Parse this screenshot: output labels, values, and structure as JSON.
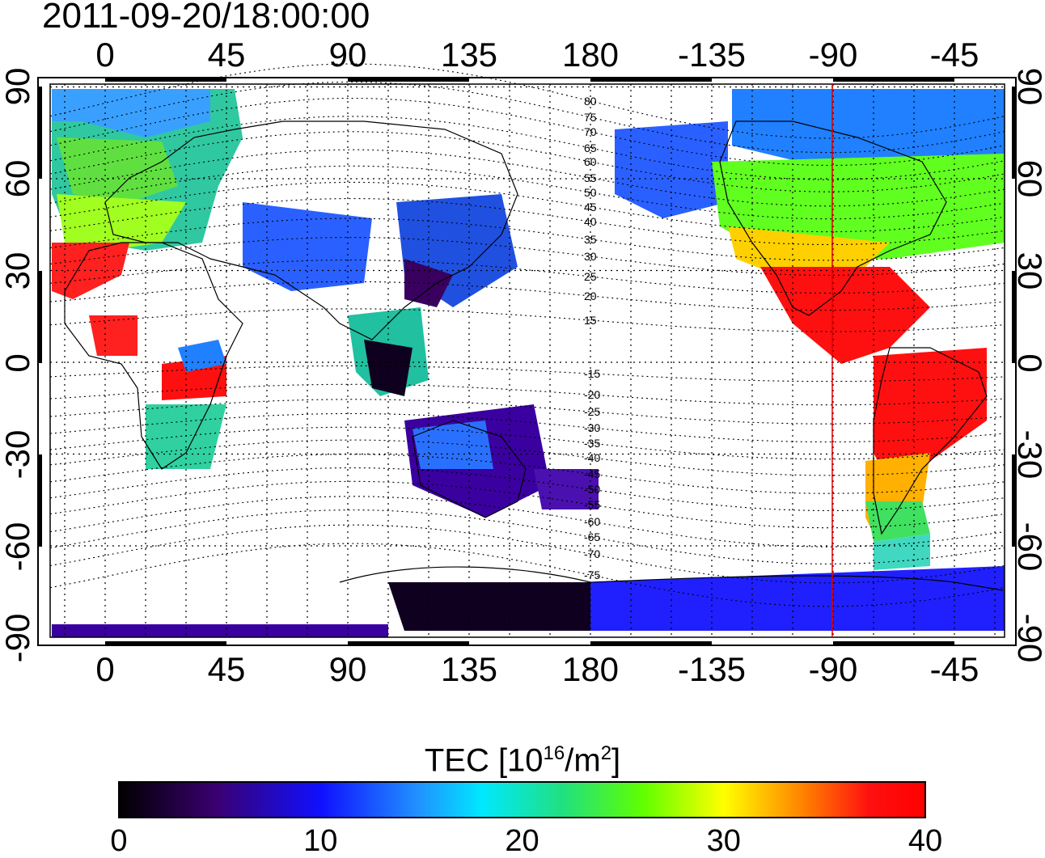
{
  "title": "2011-09-20/18:00:00",
  "map": {
    "top_ticks": [
      "0",
      "45",
      "90",
      "135",
      "180",
      "-135",
      "-90",
      "-45"
    ],
    "bottom_ticks": [
      "0",
      "45",
      "90",
      "135",
      "180",
      "-135",
      "-90",
      "-45"
    ],
    "left_ticks": [
      "90",
      "60",
      "30",
      "0",
      "-30",
      "-60",
      "-90"
    ],
    "right_ticks": [
      "90",
      "60",
      "30",
      "0",
      "-30",
      "-60",
      "-90"
    ],
    "contour_labels": [
      "80",
      "75",
      "70",
      "65",
      "60",
      "55",
      "50",
      "45",
      "40",
      "35",
      "30",
      "25",
      "20",
      "15",
      "-15",
      "-20",
      "-25",
      "-30",
      "-35",
      "-40",
      "-45",
      "-50",
      "-55",
      "-60",
      "-65",
      "-70",
      "-75"
    ],
    "marker_longitude": -90,
    "marker_color": "#e00000"
  },
  "colorbar": {
    "label_main": "TEC  [10",
    "label_exp1": "16",
    "label_mid": "/m",
    "label_exp2": "2",
    "label_end": "]",
    "ticks": [
      "0",
      "10",
      "20",
      "30",
      "40"
    ],
    "range": [
      0,
      40
    ]
  }
}
